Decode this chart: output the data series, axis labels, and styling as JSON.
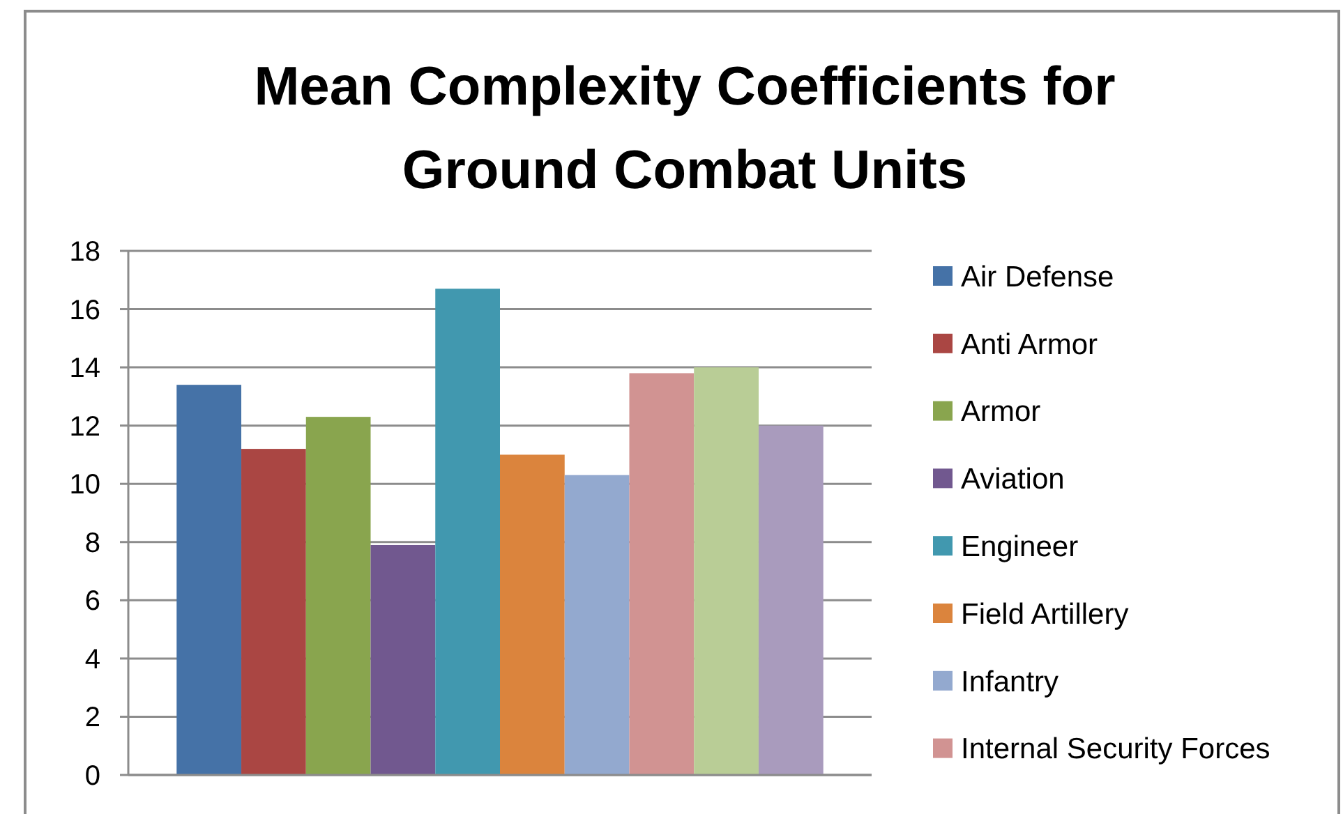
{
  "chart_data": {
    "type": "bar",
    "title": "Mean Complexity Coefficients for Ground Combat Units",
    "categories": [
      null
    ],
    "series": [
      {
        "name": "Air Defense",
        "color": "#4572a7",
        "values": [
          13.4
        ]
      },
      {
        "name": "Anti Armor",
        "color": "#aa4643",
        "values": [
          11.2
        ]
      },
      {
        "name": "Armor",
        "color": "#89a54e",
        "values": [
          12.3
        ]
      },
      {
        "name": "Aviation",
        "color": "#71588f",
        "values": [
          7.9
        ]
      },
      {
        "name": "Engineer",
        "color": "#4198af",
        "values": [
          16.7
        ]
      },
      {
        "name": "Field Artillery",
        "color": "#db843d",
        "values": [
          11.0
        ]
      },
      {
        "name": "Infantry",
        "color": "#93a9cf",
        "values": [
          10.3
        ]
      },
      {
        "name": "Internal Security Forces",
        "color": "#d19392",
        "values": [
          13.8
        ]
      },
      {
        "color": "#b9cd96",
        "values": [
          14.0
        ]
      },
      {
        "color": "#a99bbd",
        "values": [
          12.0
        ]
      }
    ],
    "ylim": [
      0,
      18
    ],
    "yticks": [
      0,
      2,
      4,
      6,
      8,
      10,
      12,
      14,
      16,
      18
    ],
    "grid": "y",
    "legend": "right"
  }
}
